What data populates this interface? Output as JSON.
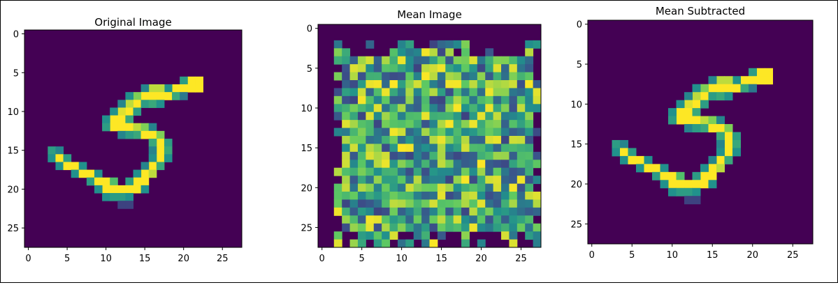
{
  "chart_data": [
    {
      "type": "heatmap",
      "title": "Original Image",
      "xticks": [
        "0",
        "5",
        "10",
        "15",
        "20",
        "25"
      ],
      "yticks": [
        "0",
        "5",
        "10",
        "15",
        "20",
        "25"
      ],
      "xlim": [
        -0.5,
        27.5
      ],
      "ylim": [
        27.5,
        -0.5
      ],
      "grid": false,
      "colormap": "viridis",
      "background_color": "#440154",
      "grid_size": [
        28,
        28
      ],
      "pixels": [
        {
          "x": 22,
          "y": 6,
          "v": 1
        },
        {
          "x": 21,
          "y": 6,
          "v": 1
        },
        {
          "x": 20,
          "y": 6,
          "v": 0.55
        },
        {
          "x": 21,
          "y": 7,
          "v": 1
        },
        {
          "x": 22,
          "y": 7,
          "v": 1
        },
        {
          "x": 20,
          "y": 7,
          "v": 1
        },
        {
          "x": 19,
          "y": 7,
          "v": 1
        },
        {
          "x": 18,
          "y": 7,
          "v": 0.5
        },
        {
          "x": 17,
          "y": 7,
          "v": 0.9
        },
        {
          "x": 16,
          "y": 7,
          "v": 0.9
        },
        {
          "x": 15,
          "y": 7,
          "v": 0.45
        },
        {
          "x": 18,
          "y": 8,
          "v": 1
        },
        {
          "x": 17,
          "y": 8,
          "v": 1
        },
        {
          "x": 16,
          "y": 8,
          "v": 1
        },
        {
          "x": 15,
          "y": 8,
          "v": 1
        },
        {
          "x": 14,
          "y": 8,
          "v": 0.8
        },
        {
          "x": 13,
          "y": 8,
          "v": 0.5
        },
        {
          "x": 19,
          "y": 8,
          "v": 0.6
        },
        {
          "x": 20,
          "y": 8,
          "v": 0.4
        },
        {
          "x": 14,
          "y": 9,
          "v": 1
        },
        {
          "x": 13,
          "y": 9,
          "v": 0.9
        },
        {
          "x": 12,
          "y": 9,
          "v": 0.45
        },
        {
          "x": 15,
          "y": 9,
          "v": 0.55
        },
        {
          "x": 16,
          "y": 9,
          "v": 0.6
        },
        {
          "x": 17,
          "y": 9,
          "v": 0.5
        },
        {
          "x": 13,
          "y": 10,
          "v": 1
        },
        {
          "x": 12,
          "y": 10,
          "v": 0.95
        },
        {
          "x": 11,
          "y": 10,
          "v": 0.5
        },
        {
          "x": 14,
          "y": 10,
          "v": 0.55
        },
        {
          "x": 12,
          "y": 11,
          "v": 1
        },
        {
          "x": 11,
          "y": 11,
          "v": 1
        },
        {
          "x": 10,
          "y": 11,
          "v": 0.5
        },
        {
          "x": 13,
          "y": 11,
          "v": 0.6
        },
        {
          "x": 11,
          "y": 12,
          "v": 1
        },
        {
          "x": 12,
          "y": 12,
          "v": 1
        },
        {
          "x": 13,
          "y": 12,
          "v": 1
        },
        {
          "x": 14,
          "y": 12,
          "v": 0.9
        },
        {
          "x": 15,
          "y": 12,
          "v": 0.8
        },
        {
          "x": 10,
          "y": 12,
          "v": 0.55
        },
        {
          "x": 16,
          "y": 12,
          "v": 0.45
        },
        {
          "x": 14,
          "y": 13,
          "v": 0.6
        },
        {
          "x": 15,
          "y": 13,
          "v": 1
        },
        {
          "x": 16,
          "y": 13,
          "v": 1
        },
        {
          "x": 17,
          "y": 13,
          "v": 0.8
        },
        {
          "x": 12,
          "y": 13,
          "v": 0.45
        },
        {
          "x": 13,
          "y": 13,
          "v": 0.55
        },
        {
          "x": 17,
          "y": 14,
          "v": 1
        },
        {
          "x": 16,
          "y": 14,
          "v": 0.6
        },
        {
          "x": 18,
          "y": 14,
          "v": 0.55
        },
        {
          "x": 17,
          "y": 15,
          "v": 1
        },
        {
          "x": 18,
          "y": 15,
          "v": 0.6
        },
        {
          "x": 16,
          "y": 15,
          "v": 0.45
        },
        {
          "x": 17,
          "y": 16,
          "v": 1
        },
        {
          "x": 18,
          "y": 16,
          "v": 0.5
        },
        {
          "x": 16,
          "y": 16,
          "v": 0.5
        },
        {
          "x": 3,
          "y": 15,
          "v": 0.55
        },
        {
          "x": 4,
          "y": 15,
          "v": 0.45
        },
        {
          "x": 3,
          "y": 16,
          "v": 0.5
        },
        {
          "x": 4,
          "y": 16,
          "v": 1
        },
        {
          "x": 5,
          "y": 16,
          "v": 0.55
        },
        {
          "x": 4,
          "y": 17,
          "v": 0.5
        },
        {
          "x": 5,
          "y": 17,
          "v": 1
        },
        {
          "x": 6,
          "y": 17,
          "v": 1
        },
        {
          "x": 7,
          "y": 17,
          "v": 0.5
        },
        {
          "x": 16,
          "y": 17,
          "v": 1
        },
        {
          "x": 17,
          "y": 17,
          "v": 0.6
        },
        {
          "x": 15,
          "y": 17,
          "v": 0.45
        },
        {
          "x": 6,
          "y": 18,
          "v": 0.5
        },
        {
          "x": 7,
          "y": 18,
          "v": 1
        },
        {
          "x": 8,
          "y": 18,
          "v": 1
        },
        {
          "x": 9,
          "y": 18,
          "v": 0.5
        },
        {
          "x": 15,
          "y": 18,
          "v": 1
        },
        {
          "x": 16,
          "y": 18,
          "v": 0.9
        },
        {
          "x": 14,
          "y": 18,
          "v": 0.5
        },
        {
          "x": 8,
          "y": 19,
          "v": 0.55
        },
        {
          "x": 9,
          "y": 19,
          "v": 1
        },
        {
          "x": 10,
          "y": 19,
          "v": 1
        },
        {
          "x": 11,
          "y": 19,
          "v": 0.7
        },
        {
          "x": 14,
          "y": 19,
          "v": 1
        },
        {
          "x": 15,
          "y": 19,
          "v": 1
        },
        {
          "x": 13,
          "y": 19,
          "v": 0.55
        },
        {
          "x": 10,
          "y": 20,
          "v": 1
        },
        {
          "x": 11,
          "y": 20,
          "v": 1
        },
        {
          "x": 12,
          "y": 20,
          "v": 1
        },
        {
          "x": 13,
          "y": 20,
          "v": 1
        },
        {
          "x": 14,
          "y": 20,
          "v": 1
        },
        {
          "x": 9,
          "y": 20,
          "v": 0.5
        },
        {
          "x": 15,
          "y": 20,
          "v": 0.5
        },
        {
          "x": 10,
          "y": 21,
          "v": 0.5
        },
        {
          "x": 11,
          "y": 21,
          "v": 0.55
        },
        {
          "x": 12,
          "y": 21,
          "v": 0.55
        },
        {
          "x": 13,
          "y": 21,
          "v": 0.5
        },
        {
          "x": 12,
          "y": 22,
          "v": 0.2
        },
        {
          "x": 13,
          "y": 22,
          "v": 0.2
        }
      ]
    },
    {
      "type": "heatmap",
      "title": "Mean Image",
      "xticks": [
        "0",
        "5",
        "10",
        "15",
        "20",
        "25"
      ],
      "yticks": [
        "0",
        "5",
        "10",
        "15",
        "20",
        "25"
      ],
      "xlim": [
        -0.5,
        27.5
      ],
      "ylim": [
        27.5,
        -0.5
      ],
      "grid": false,
      "colormap": "viridis",
      "background_color": "#440154",
      "grid_size": [
        28,
        28
      ],
      "noise_region": {
        "x_range": [
          2,
          27
        ],
        "y_range": [
          2,
          27
        ],
        "seed": 17
      }
    },
    {
      "type": "heatmap",
      "title": "Mean Subtracted",
      "xticks": [
        "0",
        "5",
        "10",
        "15",
        "20",
        "25"
      ],
      "yticks": [
        "0",
        "5",
        "10",
        "15",
        "20",
        "25"
      ],
      "xlim": [
        -0.5,
        27.5
      ],
      "ylim": [
        27.5,
        -0.5
      ],
      "grid": false,
      "colormap": "viridis",
      "background_color": "#440154",
      "grid_size": [
        28,
        28
      ],
      "same_pixels_as": 0
    }
  ]
}
